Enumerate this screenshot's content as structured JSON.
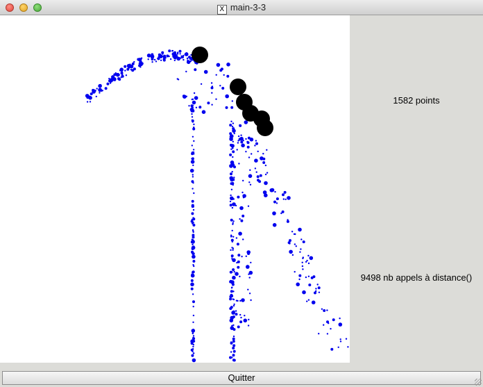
{
  "window": {
    "title": "main-3-3",
    "icon": "x11-icon"
  },
  "plot": {
    "point_color": "#0000ee",
    "centroid_color": "#000000",
    "background": "#ffffff"
  },
  "side_panel": {
    "points_label": "1582 points",
    "distance_calls_label": "9498 nb appels à distance()"
  },
  "quit_button": {
    "label": "Quitter"
  }
}
